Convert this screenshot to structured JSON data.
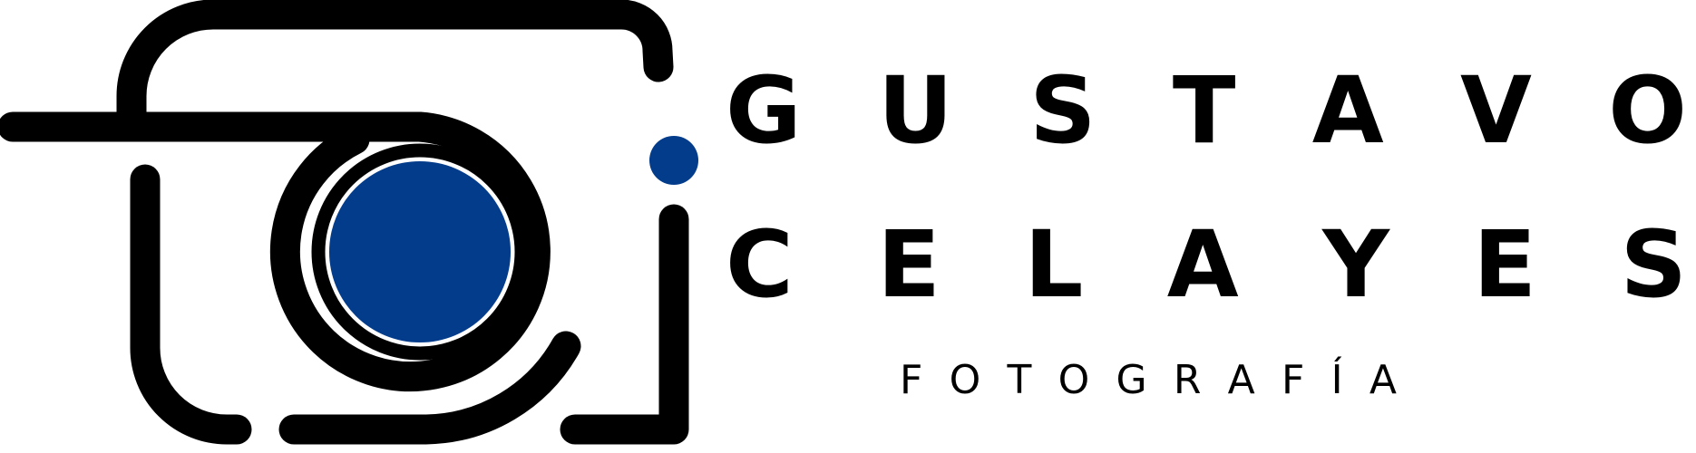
{
  "logo": {
    "name_first": "GUSTAVO",
    "name_last": "CELAYES",
    "subtitle": "FOTOGRAFÍA",
    "icon": "camera-icon",
    "colors": {
      "ink": "#000000",
      "accent": "#043C8C",
      "background": "#FFFFFF"
    }
  }
}
